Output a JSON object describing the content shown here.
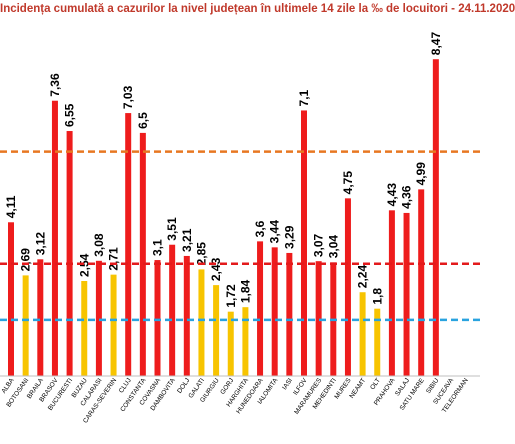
{
  "chart_data": {
    "type": "bar",
    "title": "Incidența cumulată a cazurilor la nivel județean în ultimele 14 zile la ‰ de locuitori - 24.11.2020",
    "categories": [
      "ALBA",
      "BOTOSANI",
      "BRAILA",
      "BRASOV",
      "BUCURESTI",
      "BUZAU",
      "CALARASI",
      "CARAS-SEVERIN",
      "CLUJ",
      "CONSTANTA",
      "COVASNA",
      "DAMBOVITA",
      "DOLJ",
      "GALATI",
      "GIURGIU",
      "GORJ",
      "HARGHITA",
      "HUNEDOARA",
      "IALOMITA",
      "IASI",
      "ILFOV",
      "MARAMURES",
      "MEHEDINTI",
      "MURES",
      "NEAMT",
      "OLT",
      "PRAHOVA",
      "SALAJ",
      "SATU MARE",
      "SIBIU",
      "SUCEAVA",
      "TELEORMAN"
    ],
    "visible_categories": [
      "ALBA",
      "BOTOSANI",
      "BRAILA",
      "BRASOV",
      "BUCURESTI",
      "BUZAU",
      "CALARASI",
      "CARAS-SEVERIN",
      "CLUJ",
      "CONSTANTA",
      "COVASNA",
      "DAMBOVITA",
      "DOLJ",
      "GALATI",
      "GIURGIU",
      "GORJ",
      "HARGHITA",
      "HUNEDOARA",
      "IALOMITA",
      "IASI",
      "ILFOV",
      "MARAMURES",
      "MEHEDINTI",
      "MURES",
      "NEAMT",
      "OLT",
      "PRAHOVA",
      "SALAJ",
      "SATU MARE",
      "SIBIU",
      "SUCEAVA",
      "TELEORMAN"
    ],
    "category_labels_shown": [
      "ALBA",
      "BOTOSANI",
      "BRAILA",
      "BRASOV",
      "BUCURESTI",
      "BUZAU",
      "CALARASI",
      "CARAS-SEVERIN",
      "CLUJ",
      "CONSTANTA",
      "COVASNA",
      "DAMBOVITA",
      "DOLJ",
      "GALATI",
      "GIURGIU",
      "GORJ",
      "HARGHITA",
      "HUNEDOARA",
      "IALOMITA",
      "IASI",
      "ILFOV",
      "MARAMURES",
      "MEHEDINTI",
      "MURES",
      "NEAMT",
      "OLT",
      "PRAHOVA",
      "SALAJ",
      "SATU MARE",
      "SIBIU",
      "SUCEAVA",
      "TELEORMAN"
    ],
    "values": [
      4.11,
      2.69,
      3.12,
      7.36,
      6.55,
      2.54,
      3.08,
      2.71,
      7.03,
      6.5,
      3.1,
      3.51,
      3.21,
      2.85,
      2.43,
      1.72,
      1.84,
      3.6,
      3.44,
      3.29,
      7.1,
      3.07,
      3.04,
      4.75,
      2.24,
      1.8,
      4.43,
      4.36,
      4.99,
      8.47,
      null,
      null
    ],
    "labels": [
      "4,11",
      "2,69",
      "3,12",
      "7,36",
      "6,55",
      "2,54",
      "3,08",
      "2,71",
      "7,03",
      "6,5",
      "3,1",
      "3,51",
      "3,21",
      "2,85",
      "2,43",
      "1,72",
      "1,84",
      "3,6",
      "3,44",
      "3,29",
      "7,1",
      "3,07",
      "3,04",
      "4,75",
      "2,24",
      "1,8",
      "4,43",
      "4,36",
      "4,99",
      "8,47",
      "",
      ""
    ],
    "ylim": [
      0,
      9.3
    ],
    "reference_lines": [
      {
        "value": 1.5,
        "color": "#29a3df",
        "style": "dashed"
      },
      {
        "value": 3.0,
        "color": "#e31a1c",
        "style": "dashed"
      },
      {
        "value": 6.0,
        "color": "#e87722",
        "style": "dashed"
      }
    ],
    "colors": {
      "high": "#ee1c1c",
      "low": "#f7c400"
    },
    "color_threshold": 3.0,
    "grid": false,
    "legend": "none"
  }
}
